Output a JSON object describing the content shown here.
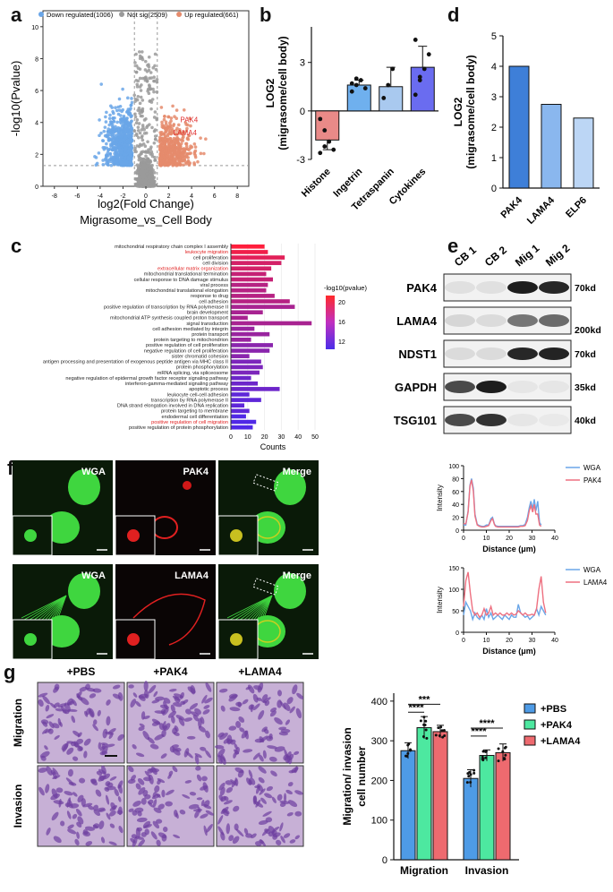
{
  "panel_letters": {
    "a": "a",
    "b": "b",
    "c": "c",
    "d": "d",
    "e": "e",
    "f": "f",
    "g": "g"
  },
  "colors": {
    "down": "#6aa6e8",
    "notsig": "#9a9a9a",
    "up": "#e58b6c",
    "green": "#3ee07a",
    "red": "#ee3030",
    "purple": "#7b3fbf",
    "blue": "#2f6bd8",
    "pbs": "#4e9be6",
    "pak4": "#4de8a0",
    "lama4": "#ee6a6f"
  },
  "chart_data": [
    {
      "type": "scatter",
      "panel": "a",
      "legend": [
        {
          "name": "Down regulated(1006)",
          "color": "#6aa6e8"
        },
        {
          "name": "Not sig(2509)",
          "color": "#9a9a9a"
        },
        {
          "name": "Up regulated(661)",
          "color": "#e58b6c"
        }
      ],
      "xlabel": "log2(Fold Change)",
      "ylabel": "-log10(Pvalue)",
      "subtitle": "Migrasome_vs_Cell Body",
      "xlim": [
        -9,
        9
      ],
      "ylim": [
        0,
        11
      ],
      "xticks": [
        -8,
        -6,
        -4,
        -2,
        0,
        2,
        4,
        6,
        8
      ],
      "yticks": [
        0,
        2,
        4,
        6,
        8,
        10
      ],
      "annotations": [
        {
          "text": "PAK4",
          "x": 3.0,
          "y": 4.0
        },
        {
          "text": "LAMA4",
          "x": 2.4,
          "y": 3.2
        }
      ]
    },
    {
      "type": "bar",
      "panel": "b",
      "categories": [
        "Histone",
        "Ingetrin",
        "Tetraspanin",
        "Cytokines"
      ],
      "values": [
        -1.8,
        1.6,
        1.5,
        2.7
      ],
      "errors": [
        0.6,
        0.3,
        1.2,
        1.3
      ],
      "colors": [
        "#e98a88",
        "#6fb0ee",
        "#a9c9ef",
        "#6a6cf0"
      ],
      "points": [
        [
          -0.5,
          -1.2,
          -1.9,
          -2.4,
          -2.6,
          -2.2
        ],
        [
          1.2,
          1.6,
          1.9,
          1.4,
          1.7,
          2.0
        ],
        [
          0.8,
          1.6,
          2.6
        ],
        [
          1.0,
          1.9,
          2.6,
          3.5,
          4.4,
          2.1
        ]
      ],
      "ylabel": "LOG2\n(migrasome/cell body)",
      "ylim": [
        -3,
        5.2
      ],
      "yticks": [
        -3,
        0,
        3
      ]
    },
    {
      "type": "bar",
      "panel": "c",
      "orientation": "horizontal",
      "categories": [
        "mitochondrial respiratory chain complex I assembly",
        "leukocyte migration",
        "cell proliferation",
        "cell division",
        "extracellular matrix organization",
        "mitochondrial translational termination",
        "cellular response to DNA damage stimulus",
        "viral process",
        "mitochondrial translational elongation",
        "response to drug",
        "cell adhesion",
        "positive regulation of transcription by RNA polymerase II",
        "brain development",
        "mitochondrial ATP synthesis coupled proton transport",
        "signal transduction",
        "cell adhesion mediated by integrin",
        "protein transport",
        "protein targeting to mitochondrion",
        "positive regulation of cell proliferation",
        "negative regulation of cell proliferation",
        "sister chromatid cohesion",
        "antigen processing and presentation of exogenous peptide antigen via MHC class II",
        "protein phosphorylation",
        "mRNA splicing, via spliceosome",
        "negative regulation of epidermal growth factor receptor signaling pathway",
        "interferon-gamma-mediated signaling pathway",
        "apoptotic process",
        "leukocyte cell-cell adhesion",
        "transcription by RNA polymerase II",
        "DNA strand elongation involved in DNA replication",
        "protein targeting to membrane",
        "endodermal cell differentiation",
        "positive regulation of cell migration",
        "positive regulation of protein phosphorylation"
      ],
      "highlighted": [
        "leukocyte migration",
        "extracellular matrix organization",
        "positive regulation of cell migration"
      ],
      "values": [
        20,
        22,
        32,
        30,
        24,
        21,
        25,
        22,
        21,
        26,
        35,
        38,
        19,
        10,
        48,
        14,
        23,
        12,
        25,
        23,
        11,
        18,
        19,
        17,
        12,
        16,
        29,
        11,
        18,
        8,
        11,
        9,
        15,
        13
      ],
      "pvalues": [
        22,
        21,
        20,
        19,
        19,
        18,
        18,
        17,
        17,
        17,
        17,
        16,
        16,
        16,
        16,
        15,
        15,
        15,
        14,
        14,
        14,
        13,
        13,
        13,
        12,
        12,
        12,
        11,
        11,
        11,
        11,
        10,
        10,
        10
      ],
      "xlabel": "Counts",
      "xticks": [
        0,
        10,
        20,
        30,
        40,
        50
      ],
      "legend_title": "-log10(pvalue)",
      "legend_ticks": [
        20,
        16,
        12
      ]
    },
    {
      "type": "bar",
      "panel": "d",
      "categories": [
        "PAK4",
        "LAMA4",
        "ELP6"
      ],
      "values": [
        4.0,
        2.75,
        2.3
      ],
      "colors": [
        "#3e7fd8",
        "#8ab7ee",
        "#bcd6f5"
      ],
      "ylabel": "LOG2\n(migrasome/cell body)",
      "ylim": [
        0,
        5
      ],
      "yticks": [
        0,
        1,
        2,
        3,
        4,
        5
      ]
    },
    {
      "type": "line",
      "panel": "f-top",
      "xlabel": "Distance (μm)",
      "ylabel": "Intensity",
      "xlim": [
        0,
        40
      ],
      "ylim": [
        0,
        100
      ],
      "xticks": [
        0,
        10,
        20,
        30,
        40
      ],
      "yticks": [
        0,
        20,
        40,
        60,
        80,
        100
      ],
      "series": [
        {
          "name": "WGA",
          "color": "#6aa6e8",
          "x": [
            0,
            1,
            2,
            2.8,
            3.5,
            4.3,
            5,
            6,
            7,
            8,
            9,
            10,
            11,
            12,
            12.7,
            13.5,
            14,
            15,
            16,
            17,
            18,
            19,
            20,
            21,
            22,
            23,
            24,
            25,
            26,
            27,
            28,
            28.8,
            29.5,
            30.3,
            31,
            31.7,
            32.5,
            33.3,
            34
          ],
          "y": [
            8,
            8,
            30,
            70,
            80,
            65,
            25,
            9,
            7,
            6,
            6,
            8,
            8,
            18,
            20,
            10,
            7,
            6,
            6,
            6,
            6,
            6,
            6,
            6,
            6,
            6,
            6,
            7,
            7,
            9,
            20,
            35,
            45,
            33,
            48,
            30,
            45,
            12,
            8
          ]
        },
        {
          "name": "PAK4",
          "color": "#ee7080",
          "x": [
            0,
            1,
            2,
            2.8,
            3.5,
            4.3,
            5,
            6,
            7,
            8,
            9,
            10,
            11,
            12,
            12.7,
            13.5,
            14,
            15,
            16,
            17,
            18,
            19,
            20,
            21,
            22,
            23,
            24,
            25,
            26,
            27,
            28,
            28.8,
            29.5,
            30.3,
            31,
            31.7,
            32.5,
            33.3,
            34
          ],
          "y": [
            10,
            10,
            28,
            68,
            78,
            60,
            22,
            8,
            6,
            5,
            5,
            6,
            7,
            15,
            18,
            9,
            6,
            5,
            5,
            5,
            5,
            5,
            5,
            5,
            5,
            5,
            5,
            6,
            6,
            7,
            15,
            30,
            38,
            28,
            40,
            25,
            25,
            8,
            6
          ]
        }
      ]
    },
    {
      "type": "line",
      "panel": "f-bottom",
      "xlabel": "Distance (μm)",
      "ylabel": "Intensity",
      "xlim": [
        0,
        40
      ],
      "ylim": [
        0,
        150
      ],
      "xticks": [
        0,
        10,
        20,
        30,
        40
      ],
      "yticks": [
        0,
        50,
        100,
        150
      ],
      "series": [
        {
          "name": "WGA",
          "color": "#6aa6e8",
          "x": [
            0,
            1,
            2,
            3,
            4,
            5,
            6,
            7,
            8,
            9,
            10,
            11,
            12,
            13,
            14,
            15,
            16,
            17,
            18,
            19,
            20,
            21,
            22,
            23,
            24,
            25,
            26,
            27,
            28,
            29,
            30,
            31,
            32,
            33,
            34,
            35,
            36
          ],
          "y": [
            40,
            70,
            60,
            50,
            30,
            45,
            35,
            30,
            40,
            30,
            55,
            35,
            45,
            30,
            35,
            40,
            35,
            30,
            40,
            35,
            30,
            40,
            35,
            35,
            65,
            45,
            40,
            35,
            38,
            30,
            35,
            40,
            55,
            40,
            60,
            50,
            40
          ]
        },
        {
          "name": "LAMA4",
          "color": "#ee7080",
          "x": [
            0,
            1,
            2,
            3,
            4,
            5,
            6,
            7,
            8,
            9,
            10,
            11,
            12,
            13,
            14,
            15,
            16,
            17,
            18,
            19,
            20,
            21,
            22,
            23,
            24,
            25,
            26,
            27,
            28,
            29,
            30,
            31,
            32,
            33,
            34,
            35,
            36
          ],
          "y": [
            60,
            120,
            140,
            90,
            50,
            40,
            45,
            35,
            40,
            55,
            40,
            45,
            60,
            40,
            45,
            40,
            45,
            40,
            40,
            45,
            40,
            45,
            40,
            42,
            50,
            45,
            40,
            45,
            40,
            40,
            42,
            40,
            55,
            100,
            130,
            70,
            45
          ]
        }
      ]
    },
    {
      "type": "bar",
      "panel": "g",
      "categories": [
        "Migration",
        "Invasion"
      ],
      "series": [
        {
          "name": "+PBS",
          "color": "#4e9be6",
          "values": [
            275,
            205
          ],
          "errors": [
            20,
            22
          ]
        },
        {
          "name": "+PAK4",
          "color": "#4de8a0",
          "values": [
            333,
            263
          ],
          "errors": [
            28,
            14
          ]
        },
        {
          "name": "+LAMA4",
          "color": "#ee6a6f",
          "values": [
            323,
            270
          ],
          "errors": [
            16,
            22
          ]
        }
      ],
      "ylabel": "Migration/ invasion\ncell number",
      "ylim": [
        0,
        420
      ],
      "yticks": [
        0,
        100,
        200,
        300,
        400
      ],
      "significance": [
        "****",
        "***",
        "****",
        "****"
      ]
    }
  ],
  "blot": {
    "lanes": [
      "CB 1",
      "CB 2",
      "Mig 1",
      "Mig 2"
    ],
    "rows": [
      {
        "label": "PAK4",
        "size": "70kd"
      },
      {
        "label": "LAMA4",
        "size": "200kd"
      },
      {
        "label": "NDST1",
        "size": "70kd"
      },
      {
        "label": "GAPDH",
        "size": "35kd"
      },
      {
        "label": "TSG101",
        "size": "40kd"
      }
    ]
  },
  "micro": {
    "top_labels": [
      "WGA",
      "PAK4",
      "Merge"
    ],
    "bottom_labels": [
      "WGA",
      "LAMA4",
      "Merge"
    ]
  },
  "transwell": {
    "col_labels": [
      "+PBS",
      "+PAK4",
      "+LAMA4"
    ],
    "row_labels": [
      "Migration",
      "Invasion"
    ]
  }
}
